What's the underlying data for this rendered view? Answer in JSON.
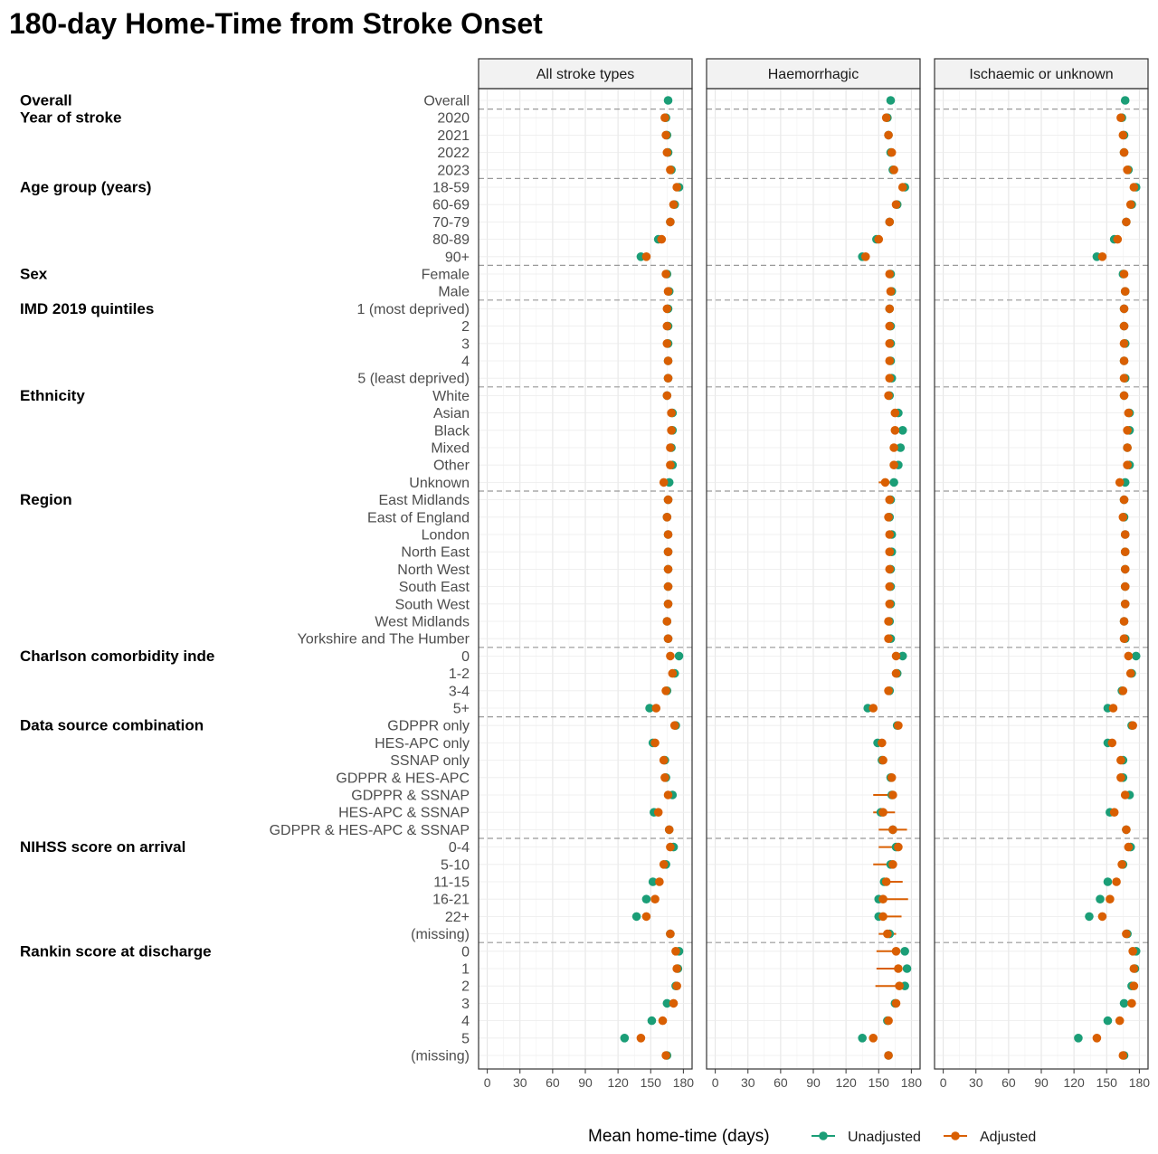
{
  "chart_data": {
    "type": "scatter",
    "title": "180-day Home-Time from Stroke Onset",
    "xlabel": "Mean home-time (days)",
    "xlim": [
      -8,
      188
    ],
    "xticks": [
      0,
      30,
      60,
      90,
      120,
      150,
      180
    ],
    "facets": [
      "All stroke types",
      "Haemorrhagic",
      "Ischaemic or unknown"
    ],
    "legend": {
      "position": "bottom",
      "title": "Mean home-time (days)"
    },
    "series": [
      {
        "name": "Unadjusted",
        "color": "#1b9e77"
      },
      {
        "name": "Adjusted",
        "color": "#d95f02"
      }
    ],
    "groups": [
      {
        "label": "Overall",
        "rows": [
          "Overall"
        ]
      },
      {
        "label": "Year of stroke",
        "rows": [
          "2020",
          "2021",
          "2022",
          "2023"
        ]
      },
      {
        "label": "Age group (years)",
        "rows": [
          "18-59",
          "60-69",
          "70-79",
          "80-89",
          "90+"
        ]
      },
      {
        "label": "Sex",
        "rows": [
          "Female",
          "Male"
        ]
      },
      {
        "label": "IMD 2019 quintiles",
        "rows": [
          "1 (most deprived)",
          "2",
          "3",
          "4",
          "5 (least deprived)"
        ]
      },
      {
        "label": "Ethnicity",
        "rows": [
          "White",
          "Asian",
          "Black",
          "Mixed",
          "Other",
          "Unknown"
        ]
      },
      {
        "label": "Region",
        "rows": [
          "East Midlands",
          "East of England",
          "London",
          "North East",
          "North West",
          "South East",
          "South West",
          "West Midlands",
          "Yorkshire and The Humber"
        ]
      },
      {
        "label": "Charlson comorbidity inde",
        "rows": [
          "0",
          "1-2",
          "3-4",
          "5+"
        ]
      },
      {
        "label": "Data source combination",
        "rows": [
          "GDPPR only",
          "HES-APC only",
          "SSNAP only",
          "GDPPR & HES-APC",
          "GDPPR & SSNAP",
          "HES-APC & SSNAP",
          "GDPPR & HES-APC & SSNAP"
        ]
      },
      {
        "label": "NIHSS score on arrival",
        "rows": [
          "0-4",
          "5-10",
          "11-15",
          "16-21",
          "22+",
          "(missing)"
        ]
      },
      {
        "label": "Rankin score at discharge",
        "rows": [
          "0",
          "1",
          "2",
          "3",
          "4",
          "5",
          "(missing)"
        ]
      }
    ],
    "values": {
      "All stroke types": {
        "unadjusted": [
          166,
          164,
          165,
          166,
          169,
          176,
          172,
          168,
          157,
          141,
          165,
          167,
          166,
          166,
          166,
          166,
          166,
          165,
          170,
          170,
          169,
          170,
          167,
          166,
          165,
          166,
          166,
          166,
          166,
          166,
          165,
          166,
          176,
          172,
          165,
          149,
          173,
          152,
          163,
          164,
          170,
          153,
          167,
          171,
          164,
          152,
          146,
          137,
          168,
          176,
          175,
          173,
          165,
          151,
          126,
          165
        ],
        "adjusted": [
          null,
          163,
          164,
          165,
          168,
          174,
          171,
          168,
          160,
          146,
          164,
          166,
          165,
          165,
          165,
          166,
          166,
          165,
          169,
          169,
          168,
          168,
          162,
          166,
          165,
          166,
          166,
          166,
          166,
          166,
          165,
          166,
          168,
          170,
          164,
          155,
          172,
          154,
          162,
          163,
          166,
          157,
          167,
          168,
          162,
          158,
          154,
          146,
          168,
          173,
          174,
          174,
          171,
          161,
          141,
          164
        ],
        "ci": [
          null,
          null,
          null,
          null,
          null,
          null,
          null,
          null,
          null,
          null,
          null,
          null,
          null,
          null,
          null,
          null,
          null,
          null,
          null,
          null,
          null,
          null,
          [
            159,
            166
          ],
          null,
          null,
          null,
          null,
          null,
          null,
          null,
          null,
          null,
          null,
          null,
          null,
          null,
          null,
          null,
          null,
          null,
          null,
          null,
          null,
          null,
          null,
          null,
          null,
          null,
          null,
          null,
          null,
          null,
          null,
          null,
          null,
          null
        ]
      },
      "Haemorrhagic": {
        "unadjusted": [
          161,
          158,
          159,
          161,
          163,
          174,
          167,
          160,
          148,
          135,
          161,
          162,
          160,
          161,
          161,
          161,
          162,
          160,
          168,
          172,
          170,
          168,
          164,
          161,
          160,
          162,
          162,
          161,
          161,
          161,
          160,
          161,
          172,
          167,
          160,
          140,
          167,
          149,
          153,
          161,
          162,
          152,
          163,
          166,
          161,
          155,
          150,
          150,
          160,
          174,
          176,
          174,
          165,
          158,
          135,
          159
        ],
        "adjusted": [
          null,
          157,
          159,
          162,
          164,
          172,
          166,
          160,
          150,
          138,
          160,
          161,
          160,
          160,
          160,
          160,
          160,
          159,
          165,
          165,
          164,
          164,
          156,
          160,
          159,
          160,
          160,
          160,
          160,
          160,
          159,
          159,
          166,
          166,
          159,
          145,
          168,
          153,
          154,
          162,
          163,
          154,
          163,
          168,
          163,
          157,
          154,
          154,
          158,
          166,
          168,
          169,
          166,
          159,
          145,
          159
        ],
        "ci": [
          null,
          null,
          null,
          null,
          null,
          null,
          null,
          null,
          null,
          null,
          null,
          null,
          null,
          null,
          null,
          null,
          null,
          null,
          null,
          null,
          null,
          null,
          [
            150,
            166
          ],
          null,
          null,
          null,
          null,
          null,
          null,
          null,
          null,
          null,
          null,
          null,
          null,
          null,
          null,
          null,
          null,
          null,
          [
            145,
            165
          ],
          [
            145,
            165
          ],
          [
            150,
            176
          ],
          [
            150,
            169
          ],
          [
            145,
            162
          ],
          [
            153,
            172
          ],
          [
            157,
            177
          ],
          [
            153,
            171
          ],
          [
            150,
            166
          ],
          [
            148,
            165
          ],
          [
            148,
            166
          ],
          [
            147,
            171
          ],
          null,
          null,
          null,
          null,
          null,
          null,
          null,
          null
        ]
      },
      "Ischaemic or unknown": {
        "unadjusted": [
          167,
          164,
          166,
          166,
          170,
          177,
          173,
          168,
          157,
          141,
          165,
          167,
          166,
          166,
          167,
          166,
          167,
          166,
          171,
          171,
          169,
          171,
          167,
          166,
          166,
          167,
          167,
          167,
          167,
          167,
          166,
          167,
          177,
          173,
          164,
          151,
          173,
          151,
          165,
          165,
          171,
          153,
          168,
          172,
          165,
          151,
          144,
          134,
          169,
          177,
          176,
          173,
          166,
          151,
          124,
          166
        ],
        "adjusted": [
          null,
          163,
          165,
          166,
          169,
          175,
          172,
          168,
          160,
          146,
          166,
          167,
          166,
          166,
          166,
          166,
          166,
          166,
          170,
          169,
          169,
          169,
          162,
          166,
          165,
          167,
          167,
          167,
          167,
          167,
          166,
          166,
          170,
          172,
          165,
          156,
          174,
          155,
          163,
          163,
          167,
          157,
          168,
          170,
          164,
          159,
          153,
          146,
          168,
          174,
          175,
          175,
          173,
          162,
          141,
          165
        ],
        "ci": [
          null,
          null,
          null,
          null,
          null,
          null,
          null,
          null,
          null,
          null,
          null,
          null,
          null,
          null,
          null,
          null,
          null,
          null,
          null,
          null,
          null,
          null,
          null,
          null,
          null,
          null,
          null,
          null,
          null,
          null,
          null,
          null,
          null,
          null,
          null,
          null,
          null,
          null,
          null,
          null,
          null,
          null,
          null,
          null,
          null,
          null,
          null,
          null,
          null,
          null,
          null,
          null,
          null,
          null,
          null,
          null
        ]
      }
    }
  }
}
